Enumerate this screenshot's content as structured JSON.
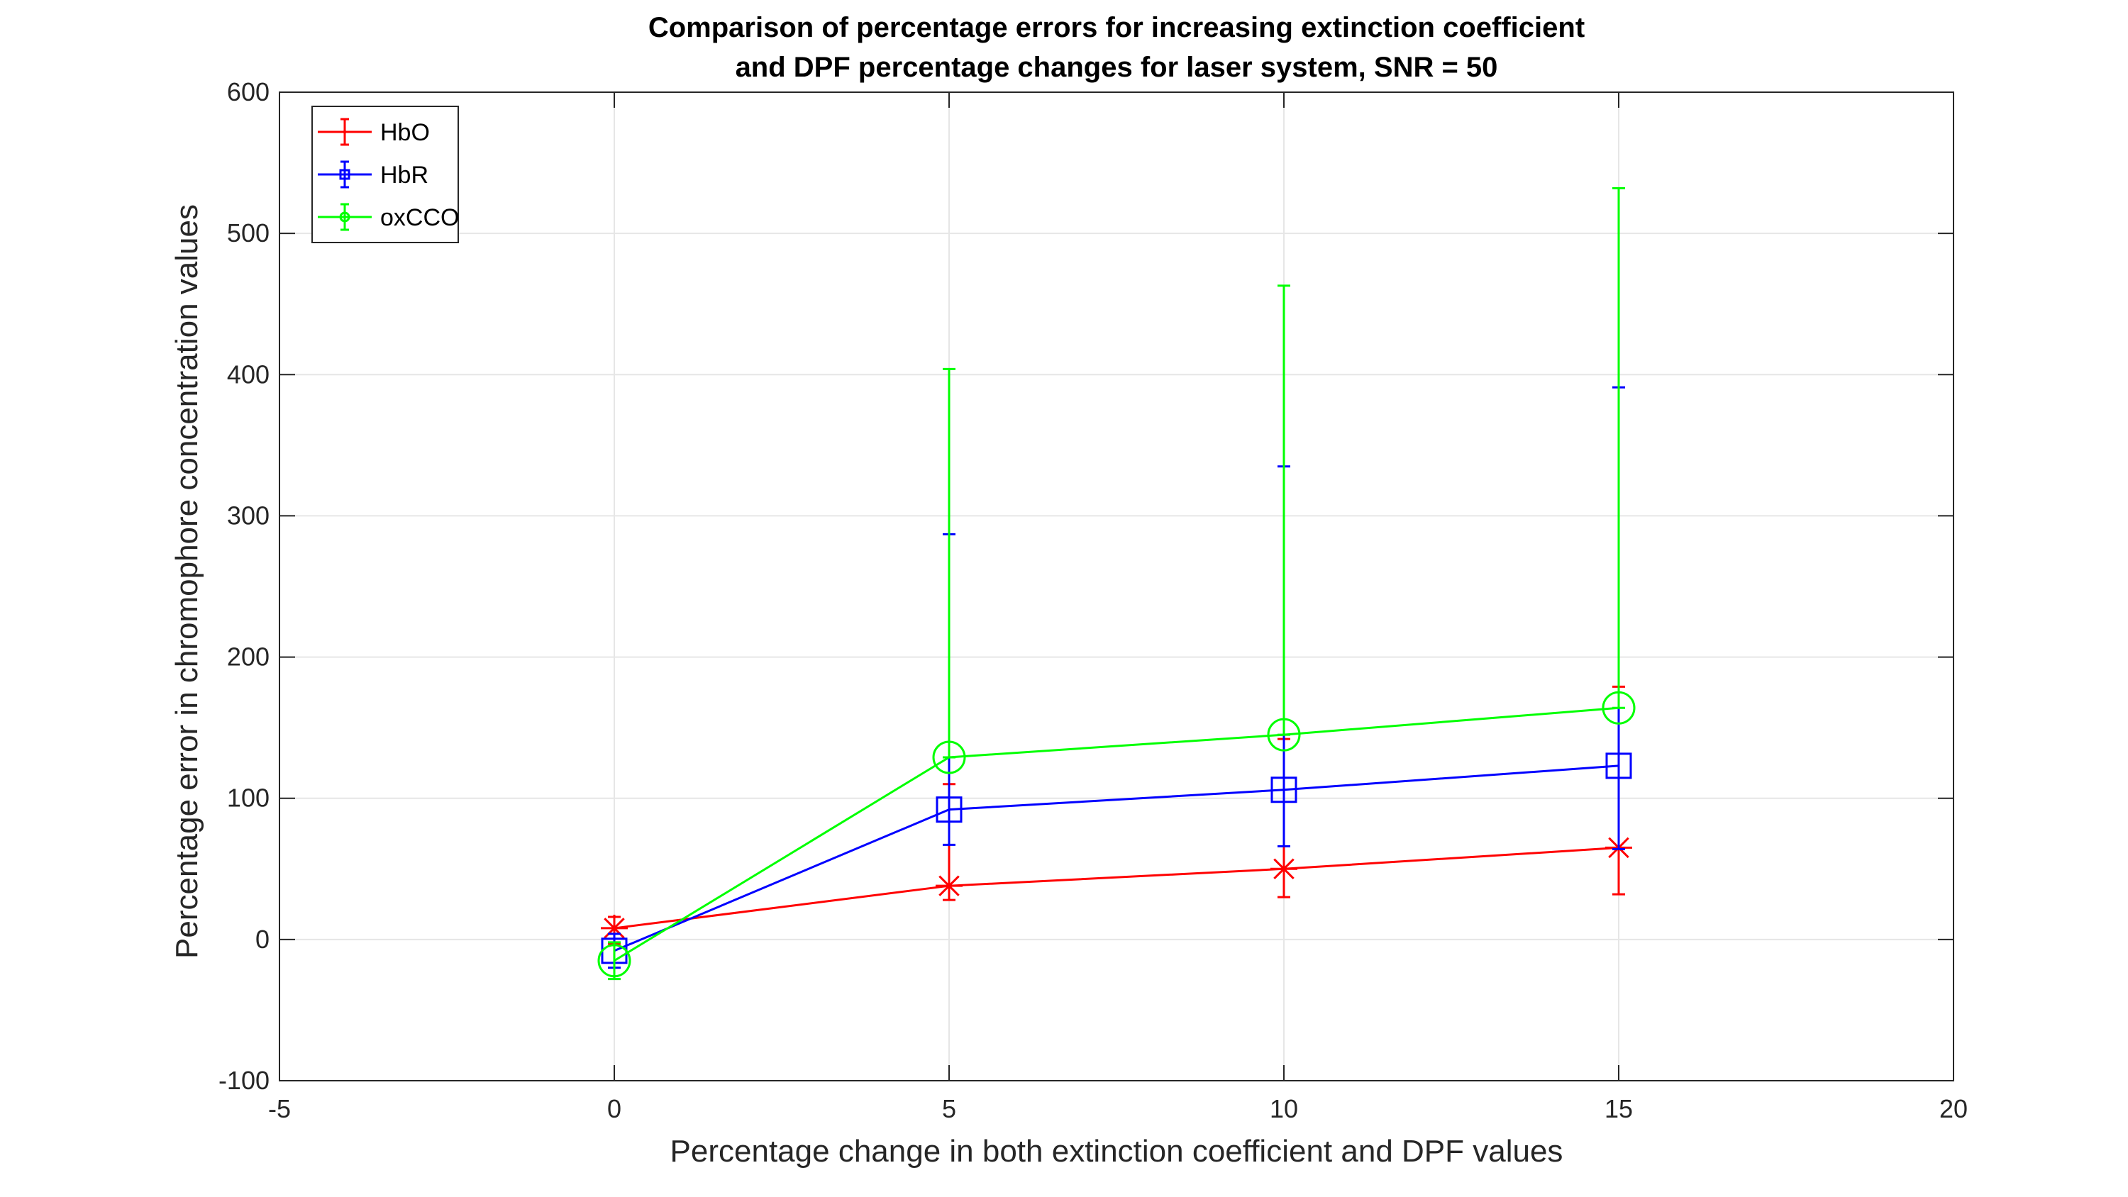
{
  "chart_data": {
    "type": "line",
    "title_line1": "Comparison of percentage errors for increasing extinction coefficient",
    "title_line2": "and DPF percentage changes for laser system, SNR = 50",
    "xlabel": "Percentage change in both extinction coefficient and DPF values",
    "ylabel": "Percentage error in chromophore concentration values",
    "xlim": [
      -5,
      20
    ],
    "ylim": [
      -100,
      600
    ],
    "xticks": [
      -5,
      0,
      5,
      10,
      15,
      20
    ],
    "yticks": [
      -100,
      0,
      100,
      200,
      300,
      400,
      500,
      600
    ],
    "grid": true,
    "legend_position": "top-left",
    "x": [
      0,
      5,
      10,
      15
    ],
    "series": [
      {
        "name": "HbO",
        "color": "#ff0000",
        "marker": "asterisk",
        "values": [
          8,
          38,
          50,
          65
        ],
        "err_lower": [
          -3,
          28,
          30,
          32
        ],
        "err_upper": [
          16,
          110,
          142,
          179
        ]
      },
      {
        "name": "HbR",
        "color": "#0000ff",
        "marker": "square",
        "values": [
          -8,
          92,
          106,
          123
        ],
        "err_lower": [
          -20,
          67,
          66,
          64
        ],
        "err_upper": [
          4,
          287,
          335,
          391
        ]
      },
      {
        "name": "oxCCO",
        "color": "#00ff00",
        "marker": "circle",
        "values": [
          -15,
          129,
          145,
          164
        ],
        "err_lower": [
          -28,
          129,
          145,
          164
        ],
        "err_upper": [
          -2,
          404,
          463,
          532
        ]
      }
    ]
  }
}
